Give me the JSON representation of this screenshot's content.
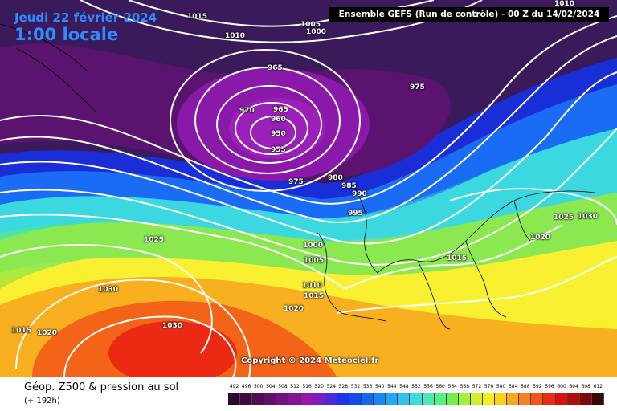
{
  "header": {
    "date": "Jeudi 22 février 2024",
    "local_time": "1:00 locale",
    "run_info": "Ensemble GEFS  (Run de contrôle)  -  00 Z du 14/02/2024"
  },
  "isobars": [
    {
      "value": "1015"
    },
    {
      "value": "1010"
    },
    {
      "value": "1005"
    },
    {
      "value": "1000"
    },
    {
      "value": "1010"
    },
    {
      "value": "965"
    },
    {
      "value": "975"
    },
    {
      "value": "970"
    },
    {
      "value": "965"
    },
    {
      "value": "960"
    },
    {
      "value": "950"
    },
    {
      "value": "955"
    },
    {
      "value": "980"
    },
    {
      "value": "985"
    },
    {
      "value": "990"
    },
    {
      "value": "975"
    },
    {
      "value": "995"
    },
    {
      "value": "1025"
    },
    {
      "value": "1030"
    },
    {
      "value": "1020"
    },
    {
      "value": "1025"
    },
    {
      "value": "1000"
    },
    {
      "value": "1005"
    },
    {
      "value": "1015"
    },
    {
      "value": "1030"
    },
    {
      "value": "1010"
    },
    {
      "value": "1015"
    },
    {
      "value": "1020"
    },
    {
      "value": "1015"
    },
    {
      "value": "1020"
    },
    {
      "value": "1030"
    }
  ],
  "copyright": "Copyright © 2024 Meteociel.fr",
  "footer": {
    "title": "Géop. Z500 & pression au sol",
    "subtitle": "(+ 192h)"
  },
  "scale": {
    "labels": [
      "492",
      "496",
      "500",
      "504",
      "508",
      "512",
      "516",
      "520",
      "524",
      "528",
      "532",
      "536",
      "540",
      "544",
      "548",
      "552",
      "556",
      "560",
      "564",
      "568",
      "572",
      "576",
      "580",
      "584",
      "588",
      "592",
      "596",
      "600",
      "604",
      "608",
      "612"
    ],
    "colors": [
      "#2a0a2a",
      "#3c0c3c",
      "#4e0e52",
      "#60106a",
      "#721280",
      "#841494",
      "#9a16aa",
      "#7a1ec0",
      "#4a2ad2",
      "#1a36e6",
      "#1448f0",
      "#1466f4",
      "#1a86f6",
      "#22a6f6",
      "#2cc4f0",
      "#3cdce0",
      "#4ae8b4",
      "#56f080",
      "#70f050",
      "#a0f040",
      "#d0f030",
      "#f4f020",
      "#f8d020",
      "#f8a820",
      "#f88020",
      "#f45418",
      "#ec2a14",
      "#d81010",
      "#b00c0c",
      "#800808",
      "#400404"
    ]
  },
  "colors": {
    "deep_low": "#501060",
    "low": "#8a18a8",
    "trough_blue": "#1a3cd6",
    "ridge_green": "#56e070",
    "high_red": "#ec2010"
  }
}
